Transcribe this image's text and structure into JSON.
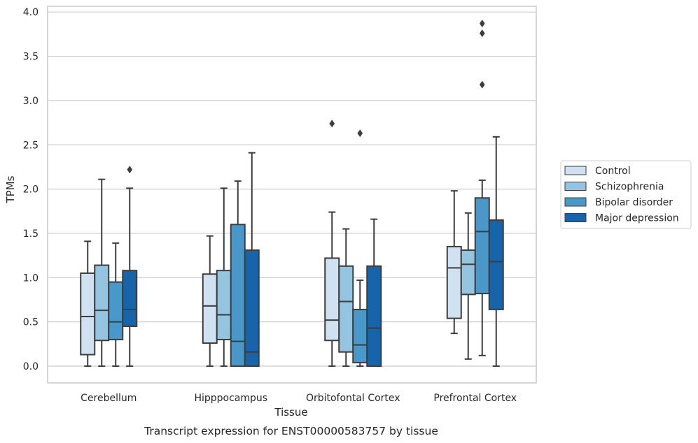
{
  "chart_data": {
    "type": "box",
    "title": "",
    "caption": "Transcript expression for ENST00000583757 by tissue",
    "xlabel": "Tissue",
    "ylabel": "TPMs",
    "ylim": [
      -0.18,
      4.07
    ],
    "yticks": [
      0.0,
      0.5,
      1.0,
      1.5,
      2.0,
      2.5,
      3.0,
      3.5,
      4.0
    ],
    "ytick_labels": [
      "0.0",
      "0.5",
      "1.0",
      "1.5",
      "2.0",
      "2.5",
      "3.0",
      "3.5",
      "4.0"
    ],
    "grid": "horizontal",
    "legend_position": "outside-right",
    "categories": [
      "Cerebellum",
      "Hipppocampus",
      "Orbitofontal Cortex",
      "Prefrontal Cortex"
    ],
    "series": [
      {
        "name": "Control",
        "color": "#d0e1f2",
        "boxes": [
          {
            "whislo": 0.0,
            "q1": 0.13,
            "med": 0.56,
            "q3": 1.05,
            "whishi": 1.41,
            "fliers": []
          },
          {
            "whislo": 0.0,
            "q1": 0.26,
            "med": 0.68,
            "q3": 1.04,
            "whishi": 1.47,
            "fliers": []
          },
          {
            "whislo": 0.0,
            "q1": 0.29,
            "med": 0.52,
            "q3": 1.22,
            "whishi": 1.74,
            "fliers": [
              2.74
            ]
          },
          {
            "whislo": 0.37,
            "q1": 0.54,
            "med": 1.11,
            "q3": 1.35,
            "whishi": 1.98,
            "fliers": []
          }
        ]
      },
      {
        "name": "Schizophrenia",
        "color": "#94c4df",
        "boxes": [
          {
            "whislo": 0.0,
            "q1": 0.29,
            "med": 0.63,
            "q3": 1.14,
            "whishi": 2.11,
            "fliers": []
          },
          {
            "whislo": 0.0,
            "q1": 0.3,
            "med": 0.58,
            "q3": 1.08,
            "whishi": 2.01,
            "fliers": []
          },
          {
            "whislo": 0.0,
            "q1": 0.16,
            "med": 0.73,
            "q3": 1.13,
            "whishi": 1.55,
            "fliers": []
          },
          {
            "whislo": 0.08,
            "q1": 0.81,
            "med": 1.15,
            "q3": 1.31,
            "whishi": 1.73,
            "fliers": []
          }
        ]
      },
      {
        "name": "Bipolar disorder",
        "color": "#4a98c9",
        "boxes": [
          {
            "whislo": 0.0,
            "q1": 0.3,
            "med": 0.5,
            "q3": 0.95,
            "whishi": 1.39,
            "fliers": []
          },
          {
            "whislo": 0.0,
            "q1": 0.0,
            "med": 0.28,
            "q3": 1.6,
            "whishi": 2.09,
            "fliers": []
          },
          {
            "whislo": 0.0,
            "q1": 0.04,
            "med": 0.24,
            "q3": 0.64,
            "whishi": 0.97,
            "fliers": [
              2.63
            ]
          },
          {
            "whislo": 0.12,
            "q1": 0.82,
            "med": 1.52,
            "q3": 1.9,
            "whishi": 2.1,
            "fliers": [
              3.18,
              3.76,
              3.87
            ]
          }
        ]
      },
      {
        "name": "Major depression",
        "color": "#1764ab",
        "boxes": [
          {
            "whislo": 0.0,
            "q1": 0.45,
            "med": 0.64,
            "q3": 1.08,
            "whishi": 2.01,
            "fliers": [
              2.22
            ]
          },
          {
            "whislo": 0.0,
            "q1": 0.0,
            "med": 0.16,
            "q3": 1.31,
            "whishi": 2.41,
            "fliers": []
          },
          {
            "whislo": 0.0,
            "q1": 0.0,
            "med": 0.43,
            "q3": 1.13,
            "whishi": 1.66,
            "fliers": []
          },
          {
            "whislo": 0.0,
            "q1": 0.64,
            "med": 1.18,
            "q3": 1.65,
            "whishi": 2.59,
            "fliers": []
          }
        ]
      }
    ]
  }
}
